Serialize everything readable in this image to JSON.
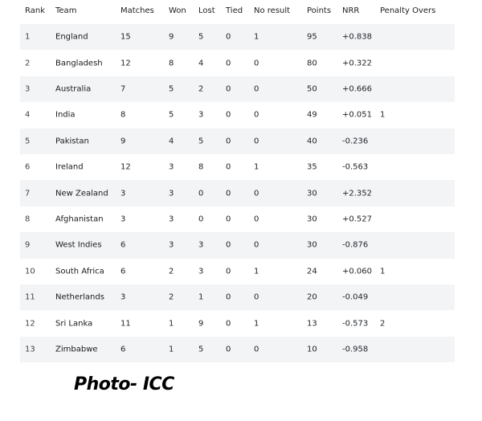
{
  "table": {
    "headers": [
      "Rank",
      "Team",
      "Matches",
      "Won",
      "Lost",
      "Tied",
      "No result",
      "Points",
      "NRR",
      "Penalty Overs"
    ],
    "rows": [
      [
        "1",
        "England",
        "15",
        "9",
        "5",
        "0",
        "1",
        "95",
        "+0.838",
        ""
      ],
      [
        "2",
        "Bangladesh",
        "12",
        "8",
        "4",
        "0",
        "0",
        "80",
        "+0.322",
        ""
      ],
      [
        "3",
        "Australia",
        "7",
        "5",
        "2",
        "0",
        "0",
        "50",
        "+0.666",
        ""
      ],
      [
        "4",
        "India",
        "8",
        "5",
        "3",
        "0",
        "0",
        "49",
        "+0.051",
        "1"
      ],
      [
        "5",
        "Pakistan",
        "9",
        "4",
        "5",
        "0",
        "0",
        "40",
        "-0.236",
        ""
      ],
      [
        "6",
        "Ireland",
        "12",
        "3",
        "8",
        "0",
        "1",
        "35",
        "-0.563",
        ""
      ],
      [
        "7",
        "New Zealand",
        "3",
        "3",
        "0",
        "0",
        "0",
        "30",
        "+2.352",
        ""
      ],
      [
        "8",
        "Afghanistan",
        "3",
        "3",
        "0",
        "0",
        "0",
        "30",
        "+0.527",
        ""
      ],
      [
        "9",
        "West Indies",
        "6",
        "3",
        "3",
        "0",
        "0",
        "30",
        "-0.876",
        ""
      ],
      [
        "10",
        "South Africa",
        "6",
        "2",
        "3",
        "0",
        "1",
        "24",
        "+0.060",
        "1"
      ],
      [
        "11",
        "Netherlands",
        "3",
        "2",
        "1",
        "0",
        "0",
        "20",
        "-0.049",
        ""
      ],
      [
        "12",
        "Sri Lanka",
        "11",
        "1",
        "9",
        "0",
        "1",
        "13",
        "-0.573",
        "2"
      ],
      [
        "13",
        "Zimbabwe",
        "6",
        "1",
        "5",
        "0",
        "0",
        "10",
        "-0.958",
        ""
      ]
    ]
  },
  "credit": "Photo- ICC",
  "colors": {
    "stripe": "#f3f4f6",
    "text": "#1f2328"
  }
}
